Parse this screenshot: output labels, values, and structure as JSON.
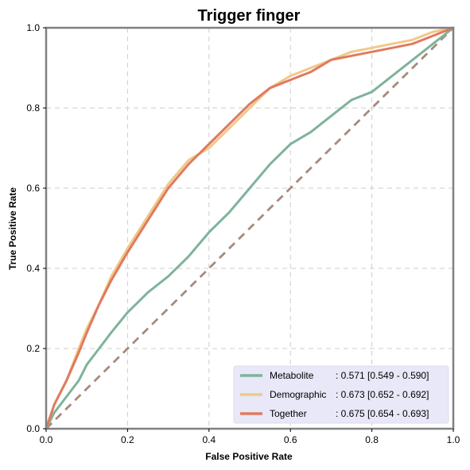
{
  "chart_data": {
    "type": "line",
    "title": "Trigger finger",
    "xlabel": "False Positive Rate",
    "ylabel": "True Positive Rate",
    "xlim": [
      0,
      1
    ],
    "ylim": [
      0,
      1
    ],
    "xticks": [
      "0.0",
      "0.2",
      "0.4",
      "0.6",
      "0.8",
      "1.0"
    ],
    "yticks": [
      "0.0",
      "0.2",
      "0.4",
      "0.6",
      "0.8",
      "1.0"
    ],
    "grid": true,
    "legend_position": "bottom-right",
    "series": [
      {
        "name": "Metabolite",
        "auc_label": ": 0.571 [0.549 - 0.590]",
        "color": "#7fb39a",
        "x": [
          0,
          0.02,
          0.05,
          0.08,
          0.1,
          0.13,
          0.16,
          0.2,
          0.25,
          0.3,
          0.35,
          0.4,
          0.45,
          0.5,
          0.55,
          0.6,
          0.65,
          0.7,
          0.75,
          0.8,
          0.85,
          0.9,
          0.95,
          1.0
        ],
        "y": [
          0,
          0.04,
          0.08,
          0.12,
          0.16,
          0.2,
          0.24,
          0.29,
          0.34,
          0.38,
          0.43,
          0.49,
          0.54,
          0.6,
          0.66,
          0.71,
          0.74,
          0.78,
          0.82,
          0.84,
          0.88,
          0.92,
          0.96,
          1.0
        ]
      },
      {
        "name": "Demographic",
        "auc_label": ": 0.673 [0.652 - 0.692]",
        "color": "#f0c989",
        "x": [
          0,
          0.02,
          0.05,
          0.08,
          0.1,
          0.13,
          0.16,
          0.2,
          0.25,
          0.3,
          0.35,
          0.4,
          0.45,
          0.5,
          0.55,
          0.6,
          0.65,
          0.7,
          0.75,
          0.8,
          0.85,
          0.9,
          0.95,
          1.0
        ],
        "y": [
          0,
          0.06,
          0.12,
          0.2,
          0.25,
          0.31,
          0.38,
          0.45,
          0.53,
          0.61,
          0.67,
          0.7,
          0.75,
          0.8,
          0.85,
          0.88,
          0.9,
          0.92,
          0.94,
          0.95,
          0.96,
          0.97,
          0.99,
          1.0
        ]
      },
      {
        "name": "Together",
        "auc_label": ": 0.675 [0.654 - 0.693]",
        "color": "#e07a5f",
        "x": [
          0,
          0.02,
          0.05,
          0.08,
          0.1,
          0.13,
          0.16,
          0.2,
          0.25,
          0.3,
          0.35,
          0.4,
          0.45,
          0.5,
          0.55,
          0.6,
          0.65,
          0.7,
          0.75,
          0.8,
          0.85,
          0.9,
          0.95,
          1.0
        ],
        "y": [
          0,
          0.06,
          0.12,
          0.19,
          0.24,
          0.31,
          0.37,
          0.44,
          0.52,
          0.6,
          0.66,
          0.71,
          0.76,
          0.81,
          0.85,
          0.87,
          0.89,
          0.92,
          0.93,
          0.94,
          0.95,
          0.96,
          0.98,
          1.0
        ]
      }
    ],
    "reference_line": {
      "x": [
        0,
        1
      ],
      "y": [
        0,
        1
      ],
      "color": "#a68a7b"
    },
    "legend_background": "#e8e8f8"
  }
}
